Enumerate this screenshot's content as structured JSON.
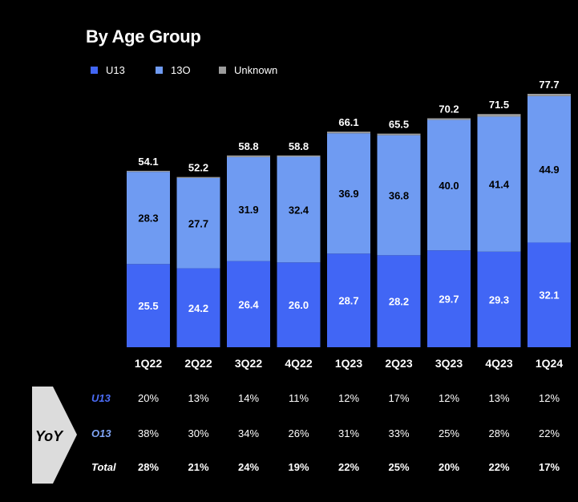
{
  "colors": {
    "u13": "#4166F5",
    "o13": "#6F9BF2",
    "unknown": "#9C9C9C",
    "background": "#000000"
  },
  "chart_data": {
    "type": "bar",
    "stacked": true,
    "title": "By Age Group",
    "categories": [
      "1Q22",
      "2Q22",
      "3Q22",
      "4Q22",
      "1Q23",
      "2Q23",
      "3Q23",
      "4Q23",
      "1Q24"
    ],
    "series": [
      {
        "name": "U13",
        "values": [
          25.5,
          24.2,
          26.4,
          26.0,
          28.7,
          28.2,
          29.7,
          29.3,
          32.1
        ]
      },
      {
        "name": "13O",
        "values": [
          28.3,
          27.7,
          31.9,
          32.4,
          36.9,
          36.8,
          40.0,
          41.4,
          44.9
        ]
      },
      {
        "name": "Unknown",
        "values": [
          0.3,
          0.3,
          0.5,
          0.4,
          0.5,
          0.5,
          0.5,
          0.8,
          0.7
        ]
      }
    ],
    "totals": [
      "54.1",
      "52.2",
      "58.8",
      "58.8",
      "66.1",
      "65.5",
      "70.2",
      "71.5",
      "77.7"
    ],
    "u13_labels": [
      "25.5",
      "24.2",
      "26.4",
      "26.0",
      "28.7",
      "28.2",
      "29.7",
      "29.3",
      "32.1"
    ],
    "o13_labels": [
      "28.3",
      "27.7",
      "31.9",
      "32.4",
      "36.9",
      "36.8",
      "40.0",
      "41.4",
      "44.9"
    ],
    "ylim": [
      0,
      80
    ],
    "legend_position": "top-left",
    "grid": false
  },
  "yoy": {
    "badge_label": "YoY",
    "rows": [
      {
        "label": "U13",
        "values": [
          "20%",
          "13%",
          "14%",
          "11%",
          "12%",
          "17%",
          "12%",
          "13%",
          "12%"
        ]
      },
      {
        "label": "O13",
        "values": [
          "38%",
          "30%",
          "34%",
          "26%",
          "31%",
          "33%",
          "25%",
          "28%",
          "22%"
        ]
      },
      {
        "label": "Total",
        "values": [
          "28%",
          "21%",
          "24%",
          "19%",
          "22%",
          "25%",
          "20%",
          "22%",
          "17%"
        ]
      }
    ]
  }
}
